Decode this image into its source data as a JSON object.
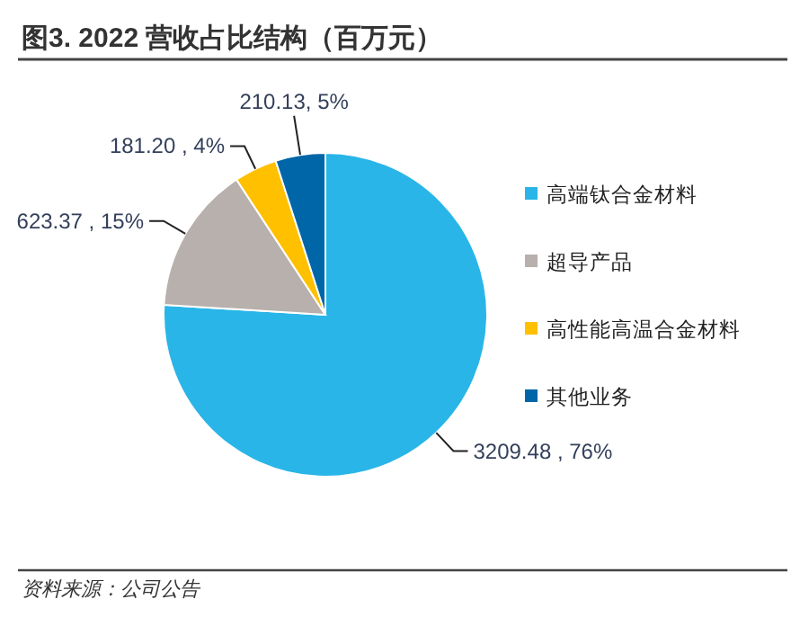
{
  "chart_data": {
    "type": "pie",
    "title": "图3. 2022 营收占比结构（百万元）",
    "categories": [
      "高端钛合金材料",
      "超导产品",
      "高性能高温合金材料",
      "其他业务"
    ],
    "values": [
      3209.48,
      623.37,
      181.2,
      210.13
    ],
    "colors": [
      "#29b5e8",
      "#b8b0ac",
      "#ffc000",
      "#0066a8"
    ],
    "value_labels": [
      "3209.48 , 76%",
      "623.37 , 15%",
      "181.20 , 4%",
      "210.13, 5%"
    ],
    "legend": "right",
    "annotations": [
      "资料来源：公司公告"
    ]
  }
}
